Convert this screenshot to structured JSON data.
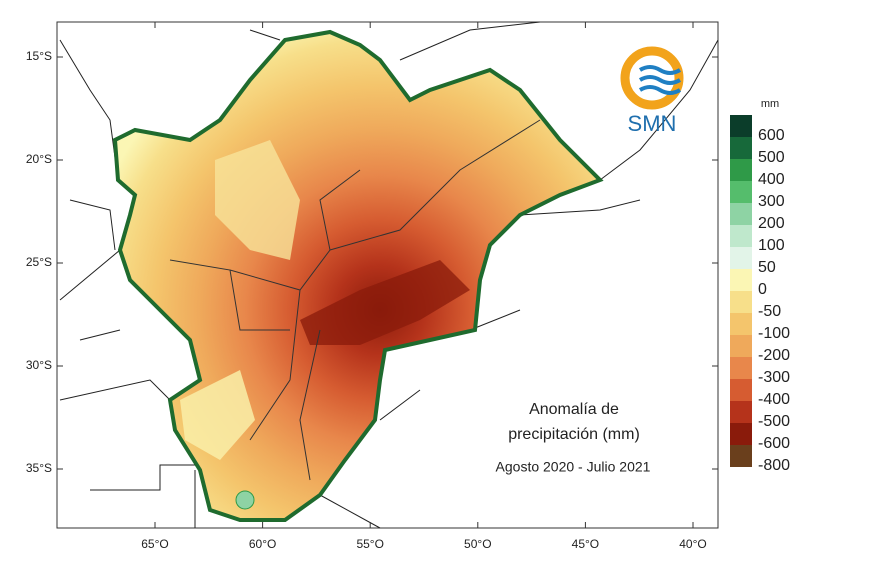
{
  "map": {
    "lat_ticks": [
      "15°S",
      "20°S",
      "25°S",
      "30°S",
      "35°S"
    ],
    "lon_ticks": [
      "65°O",
      "60°O",
      "55°O",
      "50°O",
      "45°O",
      "40°O"
    ],
    "title_lines": [
      "Anomalía de",
      "precipitación (mm)"
    ],
    "period": "Agosto 2020 - Julio 2021",
    "logo": "SMN",
    "legend": {
      "unit": "mm",
      "entries": [
        {
          "label": "600",
          "color": "#0b3d2a"
        },
        {
          "label": "500",
          "color": "#17693a"
        },
        {
          "label": "400",
          "color": "#2f9a48"
        },
        {
          "label": "300",
          "color": "#55bd6c"
        },
        {
          "label": "200",
          "color": "#8ed3a4"
        },
        {
          "label": "100",
          "color": "#bfe8cc"
        },
        {
          "label": "50",
          "color": "#e2f4e8"
        },
        {
          "label": "0",
          "color": "#fbf6b4"
        },
        {
          "label": "-50",
          "color": "#f7df8a"
        },
        {
          "label": "-100",
          "color": "#f4c56c"
        },
        {
          "label": "-200",
          "color": "#efa95b"
        },
        {
          "label": "-300",
          "color": "#e8874b"
        },
        {
          "label": "-400",
          "color": "#d65c31"
        },
        {
          "label": "-500",
          "color": "#b5331b"
        },
        {
          "label": "-600",
          "color": "#8a1b0b"
        },
        {
          "label": "-800",
          "color": "#6a3f1c"
        }
      ]
    }
  }
}
